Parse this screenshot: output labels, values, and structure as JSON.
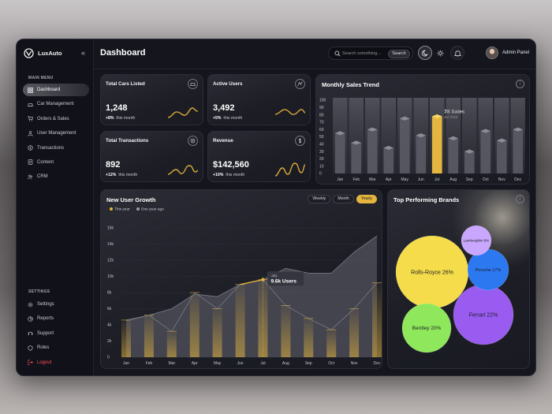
{
  "app": {
    "name": "LuxAuto",
    "collapse_glyph": "«"
  },
  "sidebar": {
    "main_menu_label": "MAIN MENU",
    "main_items": [
      {
        "label": "Dashboard",
        "icon": "grid-icon",
        "active": true
      },
      {
        "label": "Car Management",
        "icon": "car-icon"
      },
      {
        "label": "Orders & Sales",
        "icon": "cart-icon"
      },
      {
        "label": "User Management",
        "icon": "user-icon"
      },
      {
        "label": "Transactions",
        "icon": "coin-icon"
      },
      {
        "label": "Content",
        "icon": "document-icon"
      },
      {
        "label": "CRM",
        "icon": "people-icon"
      }
    ],
    "settings_label": "SETTINGS",
    "settings_items": [
      {
        "label": "Settings",
        "icon": "gear-icon"
      },
      {
        "label": "Reports",
        "icon": "report-icon"
      },
      {
        "label": "Support",
        "icon": "support-icon"
      },
      {
        "label": "Roles",
        "icon": "shield-icon"
      }
    ],
    "logout_label": "Logout"
  },
  "header": {
    "title": "Dashboard",
    "search_placeholder": "Search something...",
    "search_button": "Search",
    "user_name": "Admin Panel"
  },
  "stats": [
    {
      "title": "Total Cars Listed",
      "value": "1,248",
      "change": "+8%",
      "change_text": "this month",
      "icon": "car-icon"
    },
    {
      "title": "Active Users",
      "value": "3,492",
      "change": "+5%",
      "change_text": "this month",
      "icon": "activity-icon"
    },
    {
      "title": "Total Transactions",
      "value": "892",
      "change": "+12%",
      "change_text": "this month",
      "icon": "target-icon"
    },
    {
      "title": "Revenue",
      "value": "$142,560",
      "change": "+10%",
      "change_text": "this month",
      "icon": "dollar-icon"
    }
  ],
  "monthly_sales": {
    "title": "Monthly Sales Trend",
    "tooltip_value": "78 Sales",
    "tooltip_date": "Jul 2025"
  },
  "user_growth": {
    "title": "New User Growth",
    "toggles": [
      "Weekly",
      "Month",
      "Yearly"
    ],
    "active_toggle": "Yearly",
    "legend": [
      "This year",
      "One year ago"
    ],
    "tooltip_label": "July",
    "tooltip_value": "9.6k Users"
  },
  "top_brands": {
    "title": "Top Performing Brands"
  },
  "colors": {
    "accent": "#e4b53f",
    "background": "#14151d",
    "logout": "#ff4a5a"
  },
  "chart_data": [
    {
      "type": "bar",
      "title": "Monthly Sales Trend",
      "categories": [
        "Jan",
        "Feb",
        "Mar",
        "Apr",
        "May",
        "Jun",
        "Jul",
        "Aug",
        "Sep",
        "Oct",
        "Nov",
        "Dec"
      ],
      "yticks": [
        0,
        10,
        20,
        30,
        40,
        50,
        60,
        70,
        80,
        90,
        100
      ],
      "ylim": [
        0,
        100
      ],
      "values": [
        55,
        42,
        60,
        35,
        75,
        52,
        78,
        48,
        30,
        58,
        45,
        60
      ],
      "highlight_index": 6
    },
    {
      "type": "area",
      "title": "New User Growth",
      "categories": [
        "Jan",
        "Feb",
        "Mar",
        "Apr",
        "May",
        "Jun",
        "Jul",
        "Aug",
        "Sep",
        "Oct",
        "Nov",
        "Dec"
      ],
      "yticks": [
        "0",
        "2k",
        "4k",
        "6k",
        "8k",
        "10k",
        "12k",
        "14k",
        "16k"
      ],
      "ylim": [
        0,
        16
      ],
      "series": [
        {
          "name": "This year",
          "values": [
            4.5,
            5.2,
            6.0,
            7.8,
            7.5,
            9.0,
            9.6,
            11.0,
            10.4,
            10.4,
            13.0,
            15.0
          ]
        },
        {
          "name": "One year ago",
          "values": [
            4.6,
            5.2,
            3.2,
            8.0,
            6.0,
            9.0,
            9.6,
            6.4,
            4.8,
            3.4,
            6.0,
            9.2
          ]
        }
      ],
      "highlight_index": 6
    },
    {
      "type": "bubble",
      "title": "Top Performing Brands",
      "slices": [
        {
          "label": "Rolls-Royce",
          "value": 26,
          "color": "#f5dc4a"
        },
        {
          "label": "Ferrari",
          "value": 22,
          "color": "#9a5cf0"
        },
        {
          "label": "Bentley",
          "value": 20,
          "color": "#8fe85c"
        },
        {
          "label": "Porsche",
          "value": 17,
          "color": "#2c78f0"
        },
        {
          "label": "Lamborghini",
          "value": 6,
          "color": "#c9a7ff"
        }
      ]
    }
  ]
}
